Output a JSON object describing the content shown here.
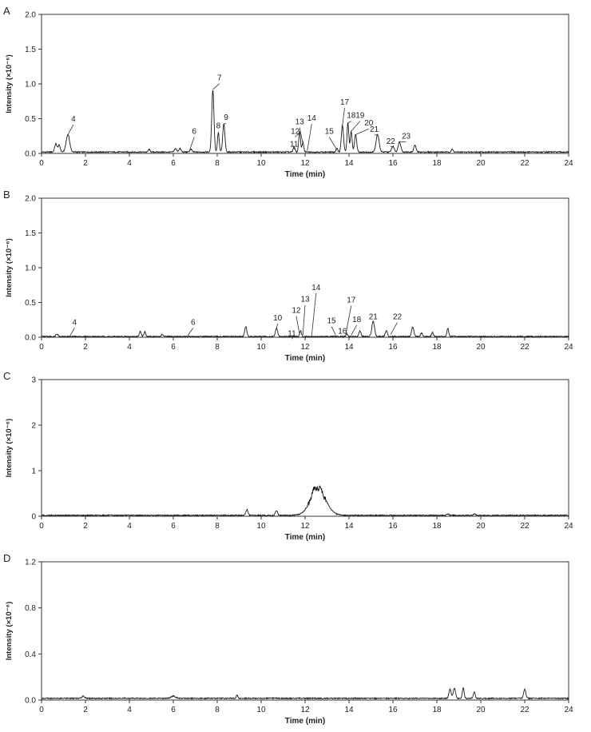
{
  "chart_data": [
    {
      "type": "line",
      "panel_label": "A",
      "xlabel": "Time (min)",
      "ylabel": "Intensity (×10⁻⁶)",
      "xlim": [
        0,
        24
      ],
      "ylim": [
        0,
        2.0
      ],
      "x_ticks": [
        "0",
        "2",
        "4",
        "6",
        "8",
        "10",
        "12",
        "14",
        "16",
        "18",
        "20",
        "22",
        "24"
      ],
      "y_ticks": [
        "0.0",
        "0.5",
        "1.0",
        "1.5",
        "2.0"
      ],
      "baseline": 0.02,
      "peaks": [
        {
          "x": 0.65,
          "y": 0.12,
          "w": 0.05
        },
        {
          "x": 0.8,
          "y": 0.1,
          "w": 0.05
        },
        {
          "x": 1.2,
          "y": 0.25,
          "w": 0.08
        },
        {
          "x": 4.9,
          "y": 0.04,
          "w": 0.04
        },
        {
          "x": 6.1,
          "y": 0.05,
          "w": 0.05
        },
        {
          "x": 6.3,
          "y": 0.05,
          "w": 0.05
        },
        {
          "x": 6.8,
          "y": 0.04,
          "w": 0.05
        },
        {
          "x": 7.8,
          "y": 0.9,
          "w": 0.05
        },
        {
          "x": 8.05,
          "y": 0.28,
          "w": 0.04
        },
        {
          "x": 8.3,
          "y": 0.4,
          "w": 0.05
        },
        {
          "x": 11.5,
          "y": 0.08,
          "w": 0.04
        },
        {
          "x": 11.75,
          "y": 0.3,
          "w": 0.04
        },
        {
          "x": 11.9,
          "y": 0.14,
          "w": 0.04
        },
        {
          "x": 13.45,
          "y": 0.05,
          "w": 0.04
        },
        {
          "x": 13.7,
          "y": 0.38,
          "w": 0.05
        },
        {
          "x": 13.95,
          "y": 0.42,
          "w": 0.04
        },
        {
          "x": 14.1,
          "y": 0.3,
          "w": 0.04
        },
        {
          "x": 14.3,
          "y": 0.25,
          "w": 0.05
        },
        {
          "x": 15.3,
          "y": 0.25,
          "w": 0.07
        },
        {
          "x": 16.0,
          "y": 0.08,
          "w": 0.06
        },
        {
          "x": 16.3,
          "y": 0.15,
          "w": 0.06
        },
        {
          "x": 17.0,
          "y": 0.1,
          "w": 0.05
        },
        {
          "x": 18.7,
          "y": 0.04,
          "w": 0.04
        }
      ],
      "annotations": [
        {
          "label": "4",
          "x": 1.2,
          "y": 0.27,
          "tx": 1.45,
          "ty": 0.46
        },
        {
          "label": "6",
          "x": 6.75,
          "y": 0.05,
          "tx": 6.95,
          "ty": 0.28
        },
        {
          "label": "7",
          "x": 7.8,
          "y": 0.92,
          "tx": 8.1,
          "ty": 1.05
        },
        {
          "label": "8",
          "x": 8.05,
          "y": 0.3,
          "tx": 8.05,
          "ty": 0.36
        },
        {
          "label": "9",
          "x": 8.3,
          "y": 0.42,
          "tx": 8.4,
          "ty": 0.48
        },
        {
          "label": "11",
          "x": 11.5,
          "y": 0.08,
          "tx": 11.5,
          "ty": 0.1
        },
        {
          "label": "12",
          "x": 11.75,
          "y": 0.3,
          "tx": 11.55,
          "ty": 0.28
        },
        {
          "label": "13",
          "x": 11.9,
          "y": 0.14,
          "tx": 11.75,
          "ty": 0.42
        },
        {
          "label": "14",
          "x": 12.1,
          "y": 0.04,
          "tx": 12.3,
          "ty": 0.47
        },
        {
          "label": "15",
          "x": 13.45,
          "y": 0.05,
          "tx": 13.1,
          "ty": 0.28
        },
        {
          "label": "17",
          "x": 13.7,
          "y": 0.4,
          "tx": 13.8,
          "ty": 0.7
        },
        {
          "label": "18",
          "x": 13.95,
          "y": 0.44,
          "tx": 14.1,
          "ty": 0.51
        },
        {
          "label": "19",
          "x": 14.1,
          "y": 0.32,
          "tx": 14.5,
          "ty": 0.51
        },
        {
          "label": "20",
          "x": 14.3,
          "y": 0.27,
          "tx": 14.9,
          "ty": 0.4
        },
        {
          "label": "21",
          "x": 15.3,
          "y": 0.27,
          "tx": 15.15,
          "ty": 0.31
        },
        {
          "label": "22",
          "x": 16.0,
          "y": 0.1,
          "tx": 15.9,
          "ty": 0.14
        },
        {
          "label": "23",
          "x": 16.3,
          "y": 0.17,
          "tx": 16.6,
          "ty": 0.21
        }
      ]
    },
    {
      "type": "line",
      "panel_label": "B",
      "xlabel": "Time (min)",
      "ylabel": "Intensity (×10⁻⁶)",
      "xlim": [
        0,
        24
      ],
      "ylim": [
        0,
        2.0
      ],
      "x_ticks": [
        "0",
        "2",
        "4",
        "6",
        "8",
        "10",
        "12",
        "14",
        "16",
        "18",
        "20",
        "22",
        "24"
      ],
      "y_ticks": [
        "0.0",
        "0.5",
        "1.0",
        "1.5",
        "2.0"
      ],
      "baseline": 0.01,
      "peaks": [
        {
          "x": 0.7,
          "y": 0.04,
          "w": 0.05
        },
        {
          "x": 4.5,
          "y": 0.08,
          "w": 0.04
        },
        {
          "x": 4.7,
          "y": 0.07,
          "w": 0.04
        },
        {
          "x": 5.5,
          "y": 0.03,
          "w": 0.04
        },
        {
          "x": 9.3,
          "y": 0.14,
          "w": 0.05
        },
        {
          "x": 10.7,
          "y": 0.12,
          "w": 0.05
        },
        {
          "x": 11.8,
          "y": 0.08,
          "w": 0.04
        },
        {
          "x": 13.9,
          "y": 0.04,
          "w": 0.04
        },
        {
          "x": 14.5,
          "y": 0.08,
          "w": 0.05
        },
        {
          "x": 15.1,
          "y": 0.22,
          "w": 0.06
        },
        {
          "x": 15.7,
          "y": 0.08,
          "w": 0.05
        },
        {
          "x": 16.9,
          "y": 0.14,
          "w": 0.05
        },
        {
          "x": 17.3,
          "y": 0.05,
          "w": 0.04
        },
        {
          "x": 17.8,
          "y": 0.06,
          "w": 0.04
        },
        {
          "x": 18.5,
          "y": 0.12,
          "w": 0.04
        }
      ],
      "annotations": [
        {
          "label": "4",
          "x": 1.3,
          "y": 0.02,
          "tx": 1.5,
          "ty": 0.18
        },
        {
          "label": "6",
          "x": 6.65,
          "y": 0.02,
          "tx": 6.9,
          "ty": 0.18
        },
        {
          "label": "10",
          "x": 10.7,
          "y": 0.13,
          "tx": 10.75,
          "ty": 0.24
        },
        {
          "label": "11",
          "x": 11.5,
          "y": 0.03,
          "tx": 11.4,
          "ty": 0.02
        },
        {
          "label": "12",
          "x": 11.75,
          "y": 0.04,
          "tx": 11.6,
          "ty": 0.35
        },
        {
          "label": "13",
          "x": 11.9,
          "y": 0.03,
          "tx": 12.0,
          "ty": 0.51
        },
        {
          "label": "14",
          "x": 12.3,
          "y": 0.02,
          "tx": 12.5,
          "ty": 0.68
        },
        {
          "label": "15",
          "x": 13.4,
          "y": 0.03,
          "tx": 13.2,
          "ty": 0.2
        },
        {
          "label": "16",
          "x": 13.6,
          "y": 0.02,
          "tx": 13.7,
          "ty": 0.05
        },
        {
          "label": "17",
          "x": 13.85,
          "y": 0.04,
          "tx": 14.1,
          "ty": 0.5
        },
        {
          "label": "18",
          "x": 14.1,
          "y": 0.03,
          "tx": 14.35,
          "ty": 0.22
        },
        {
          "label": "21",
          "x": 15.1,
          "y": 0.24,
          "tx": 15.1,
          "ty": 0.26
        },
        {
          "label": "22",
          "x": 15.9,
          "y": 0.04,
          "tx": 16.2,
          "ty": 0.26
        }
      ]
    },
    {
      "type": "line",
      "panel_label": "C",
      "xlabel": "Time (min)",
      "ylabel": "Intensity (×10⁻⁶)",
      "xlim": [
        0,
        24
      ],
      "ylim": [
        0,
        3
      ],
      "x_ticks": [
        "0",
        "2",
        "4",
        "6",
        "8",
        "10",
        "12",
        "14",
        "16",
        "18",
        "20",
        "22",
        "24"
      ],
      "y_ticks": [
        "0",
        "1",
        "2",
        "3"
      ],
      "baseline": 0.02,
      "peaks": [
        {
          "x": 9.35,
          "y": 0.12,
          "w": 0.05
        },
        {
          "x": 10.7,
          "y": 0.1,
          "w": 0.05
        },
        {
          "x": 12.6,
          "y": 0.55,
          "w": 0.35
        },
        {
          "x": 12.4,
          "y": 0.12,
          "w": 0.08
        },
        {
          "x": 12.7,
          "y": 0.1,
          "w": 0.06
        },
        {
          "x": 18.5,
          "y": 0.03,
          "w": 0.05
        },
        {
          "x": 19.7,
          "y": 0.03,
          "w": 0.05
        }
      ],
      "annotations": []
    },
    {
      "type": "line",
      "panel_label": "D",
      "xlabel": "Time (min)",
      "ylabel": "Intensity (×10⁻⁶)",
      "xlim": [
        0,
        24
      ],
      "ylim": [
        0,
        1.2
      ],
      "x_ticks": [
        "0",
        "2",
        "4",
        "6",
        "8",
        "10",
        "12",
        "14",
        "16",
        "18",
        "20",
        "22",
        "24"
      ],
      "y_ticks": [
        "0.0",
        "0.4",
        "0.8",
        "1.2"
      ],
      "baseline": 0.015,
      "peaks": [
        {
          "x": 1.9,
          "y": 0.02,
          "w": 0.06
        },
        {
          "x": 6.0,
          "y": 0.02,
          "w": 0.1
        },
        {
          "x": 8.9,
          "y": 0.03,
          "w": 0.03
        },
        {
          "x": 18.6,
          "y": 0.08,
          "w": 0.05
        },
        {
          "x": 18.8,
          "y": 0.09,
          "w": 0.05
        },
        {
          "x": 19.2,
          "y": 0.09,
          "w": 0.04
        },
        {
          "x": 19.7,
          "y": 0.06,
          "w": 0.04
        },
        {
          "x": 22.0,
          "y": 0.08,
          "w": 0.05
        }
      ],
      "annotations": []
    }
  ]
}
